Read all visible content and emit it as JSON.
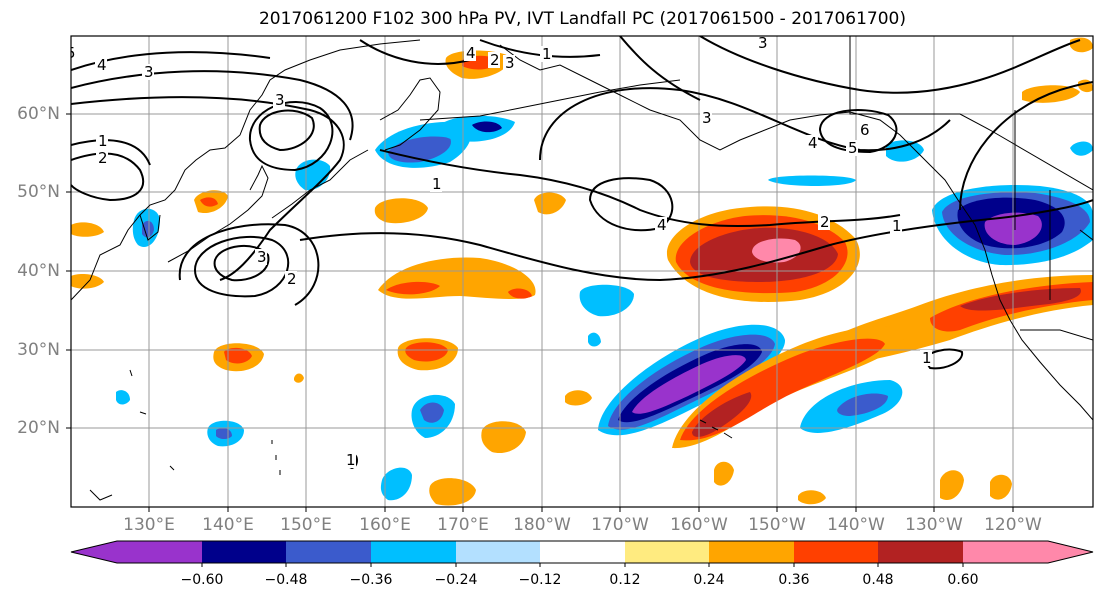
{
  "title": "2017061200 F102 300 hPa PV, IVT Landfall PC (2017061500 - 2017061700)",
  "map": {
    "lat_labels": [
      "60°N",
      "50°N",
      "40°N",
      "30°N",
      "20°N"
    ],
    "lon_labels": [
      "130°E",
      "140°E",
      "150°E",
      "160°E",
      "170°E",
      "180°W",
      "170°W",
      "160°W",
      "150°W",
      "140°W",
      "130°W",
      "120°W"
    ],
    "contour_labels": [
      "5",
      "4",
      "3",
      "3",
      "1",
      "2",
      "4",
      "2",
      "3",
      "1",
      "1",
      "3",
      "3",
      "4",
      "5",
      "6",
      "3",
      "2",
      "4",
      "2",
      "1",
      "1",
      "1"
    ],
    "contour_color": "#000000",
    "gridline_color": "#999999"
  },
  "colorbar": {
    "tick_labels": [
      "−0.60",
      "−0.48",
      "−0.36",
      "−0.24",
      "−0.12",
      "0.12",
      "0.24",
      "0.36",
      "0.48",
      "0.60"
    ],
    "colors": [
      "#9933cc",
      "#00008b",
      "#3b5bcc",
      "#00bfff",
      "#b3e0ff",
      "#ffffff",
      "#ffeb80",
      "#ffa500",
      "#ff4000",
      "#b22222",
      "#ff88aa"
    ]
  }
}
